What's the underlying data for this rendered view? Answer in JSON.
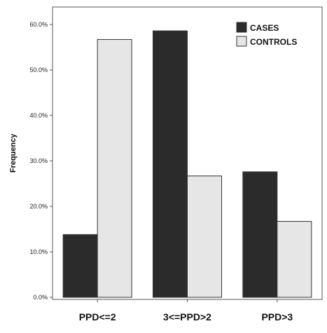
{
  "chart_data": {
    "type": "bar",
    "categories": [
      "PPD<=2",
      "3<=PPD>2",
      "PPD>3"
    ],
    "series": [
      {
        "name": "CASES",
        "values": [
          13.8,
          58.6,
          27.6
        ],
        "color": "#2b2b2b"
      },
      {
        "name": "CONTROLS",
        "values": [
          56.7,
          26.7,
          16.7
        ],
        "color": "#e6e6e6"
      }
    ],
    "ylabel": "Frequency",
    "xlabel": "",
    "ylim": [
      0,
      60
    ],
    "yticks": [
      "0.0%",
      "10.0%",
      "20.0%",
      "30.0%",
      "40.0%",
      "50.0%",
      "60.0%"
    ],
    "grid": false,
    "legend_position": "top-right"
  }
}
